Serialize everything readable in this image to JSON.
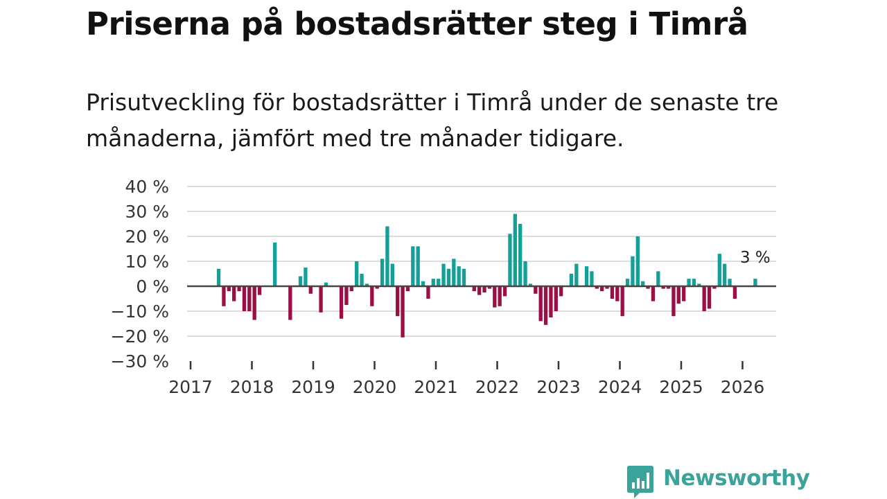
{
  "title": "Priserna på bostadsrätter steg i Timrå",
  "subtitle": "Prisutveckling för bostadsrätter i Timrå under de senaste tre månaderna, jämfört med tre månader tidigare.",
  "brand": {
    "name": "Newsworthy",
    "color": "#3aa39a",
    "icon": "bar-chart-speech-bubble-icon"
  },
  "colors": {
    "positive": "#14a098",
    "negative": "#9b0f45",
    "grid": "#dddddd",
    "zero_line": "#444444",
    "axis": "#333333"
  },
  "chart_data": {
    "type": "bar",
    "title": "Priserna på bostadsrätter steg i Timrå",
    "ylabel": "",
    "xlabel": "",
    "ylim": [
      -30,
      40
    ],
    "y_ticks": [
      40,
      30,
      20,
      10,
      0,
      -10,
      -20,
      -30
    ],
    "y_tick_labels": [
      "40 %",
      "30 %",
      "20 %",
      "10 %",
      "0 %",
      "−10 %",
      "−20 %",
      "−30 %"
    ],
    "x_ticks": [
      2017,
      2018,
      2019,
      2020,
      2021,
      2022,
      2023,
      2024,
      2025,
      2026
    ],
    "x_tick_labels": [
      "2017",
      "2018",
      "2019",
      "2020",
      "2021",
      "2022",
      "2023",
      "2024",
      "2025",
      "2026"
    ],
    "x_range": [
      2017.0,
      2026.6
    ],
    "grid": true,
    "series": [
      {
        "name": "Prisutveckling",
        "unit": "%",
        "start_year": 2017,
        "start_month": 6,
        "values": [
          7,
          -8,
          -2,
          -6,
          -2,
          -10,
          -10,
          -13.5,
          -3.5,
          null,
          null,
          17.5,
          null,
          null,
          -13.5,
          null,
          4,
          7.5,
          -3,
          null,
          -10.5,
          1.5,
          null,
          null,
          -13,
          -7.5,
          -2,
          10,
          5,
          1,
          -8,
          -1,
          11,
          24,
          9,
          -12,
          -20.5,
          -2,
          16,
          16,
          2,
          -5,
          3,
          3,
          9,
          7,
          11,
          8,
          7,
          null,
          -2,
          -3.5,
          -2.5,
          -1,
          -8.5,
          -8,
          -4,
          21,
          29,
          25,
          10,
          1,
          -3,
          -14,
          -15.5,
          -12.5,
          -10,
          -4,
          null,
          5,
          9,
          null,
          8,
          6,
          -1,
          -2,
          -1,
          -5,
          -6,
          -12,
          3,
          12,
          20,
          2,
          -1,
          -6,
          6,
          -1,
          -1,
          -12,
          -7,
          -6,
          3,
          3,
          1,
          -10,
          -9,
          -1,
          13,
          9,
          3,
          -5,
          null,
          null,
          null,
          3
        ]
      }
    ],
    "annotations": [
      {
        "text": "3 %",
        "target": "last"
      }
    ]
  }
}
